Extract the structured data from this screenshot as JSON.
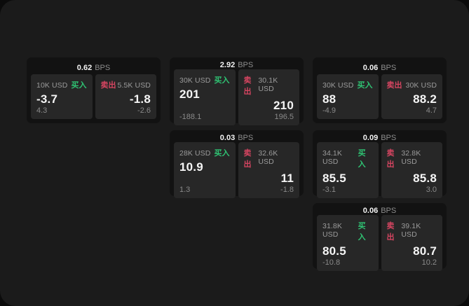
{
  "labels": {
    "bps_unit": "BPS",
    "buy": "买入",
    "sell": "卖出"
  },
  "colors": {
    "window_bg": "#1b1b1b",
    "card_bg": "#121212",
    "panel_bg": "#272727",
    "buy_green": "#2fc373",
    "sell_red": "#d64561",
    "primary_text": "#f5f5f5",
    "muted_text": "#8d8d8d"
  },
  "cards": [
    {
      "row": 1,
      "col": 1,
      "bps": "0.62",
      "buy": {
        "amount": "10K USD",
        "value": "-3.7",
        "sub": "4.3"
      },
      "sell": {
        "amount": "5.5K USD",
        "value": "-1.8",
        "sub": "-2.6"
      }
    },
    {
      "row": 1,
      "col": 2,
      "bps": "2.92",
      "buy": {
        "amount": "30K USD",
        "value": "201",
        "sub": "-188.1"
      },
      "sell": {
        "amount": "30.1K USD",
        "value": "210",
        "sub": "196.5"
      }
    },
    {
      "row": 1,
      "col": 3,
      "bps": "0.06",
      "buy": {
        "amount": "30K USD",
        "value": "88",
        "sub": "-4.9"
      },
      "sell": {
        "amount": "30K USD",
        "value": "88.2",
        "sub": "4.7"
      }
    },
    {
      "row": 2,
      "col": 2,
      "bps": "0.03",
      "buy": {
        "amount": "28K USD",
        "value": "10.9",
        "sub": "1.3"
      },
      "sell": {
        "amount": "32.6K USD",
        "value": "11",
        "sub": "-1.8"
      }
    },
    {
      "row": 2,
      "col": 3,
      "bps": "0.09",
      "buy": {
        "amount": "34.1K USD",
        "value": "85.5",
        "sub": "-3.1"
      },
      "sell": {
        "amount": "32.8K USD",
        "value": "85.8",
        "sub": "3.0"
      }
    },
    {
      "row": 3,
      "col": 3,
      "bps": "0.06",
      "buy": {
        "amount": "31.8K USD",
        "value": "80.5",
        "sub": "-10.8"
      },
      "sell": {
        "amount": "39.1K USD",
        "value": "80.7",
        "sub": "10.2"
      }
    }
  ]
}
